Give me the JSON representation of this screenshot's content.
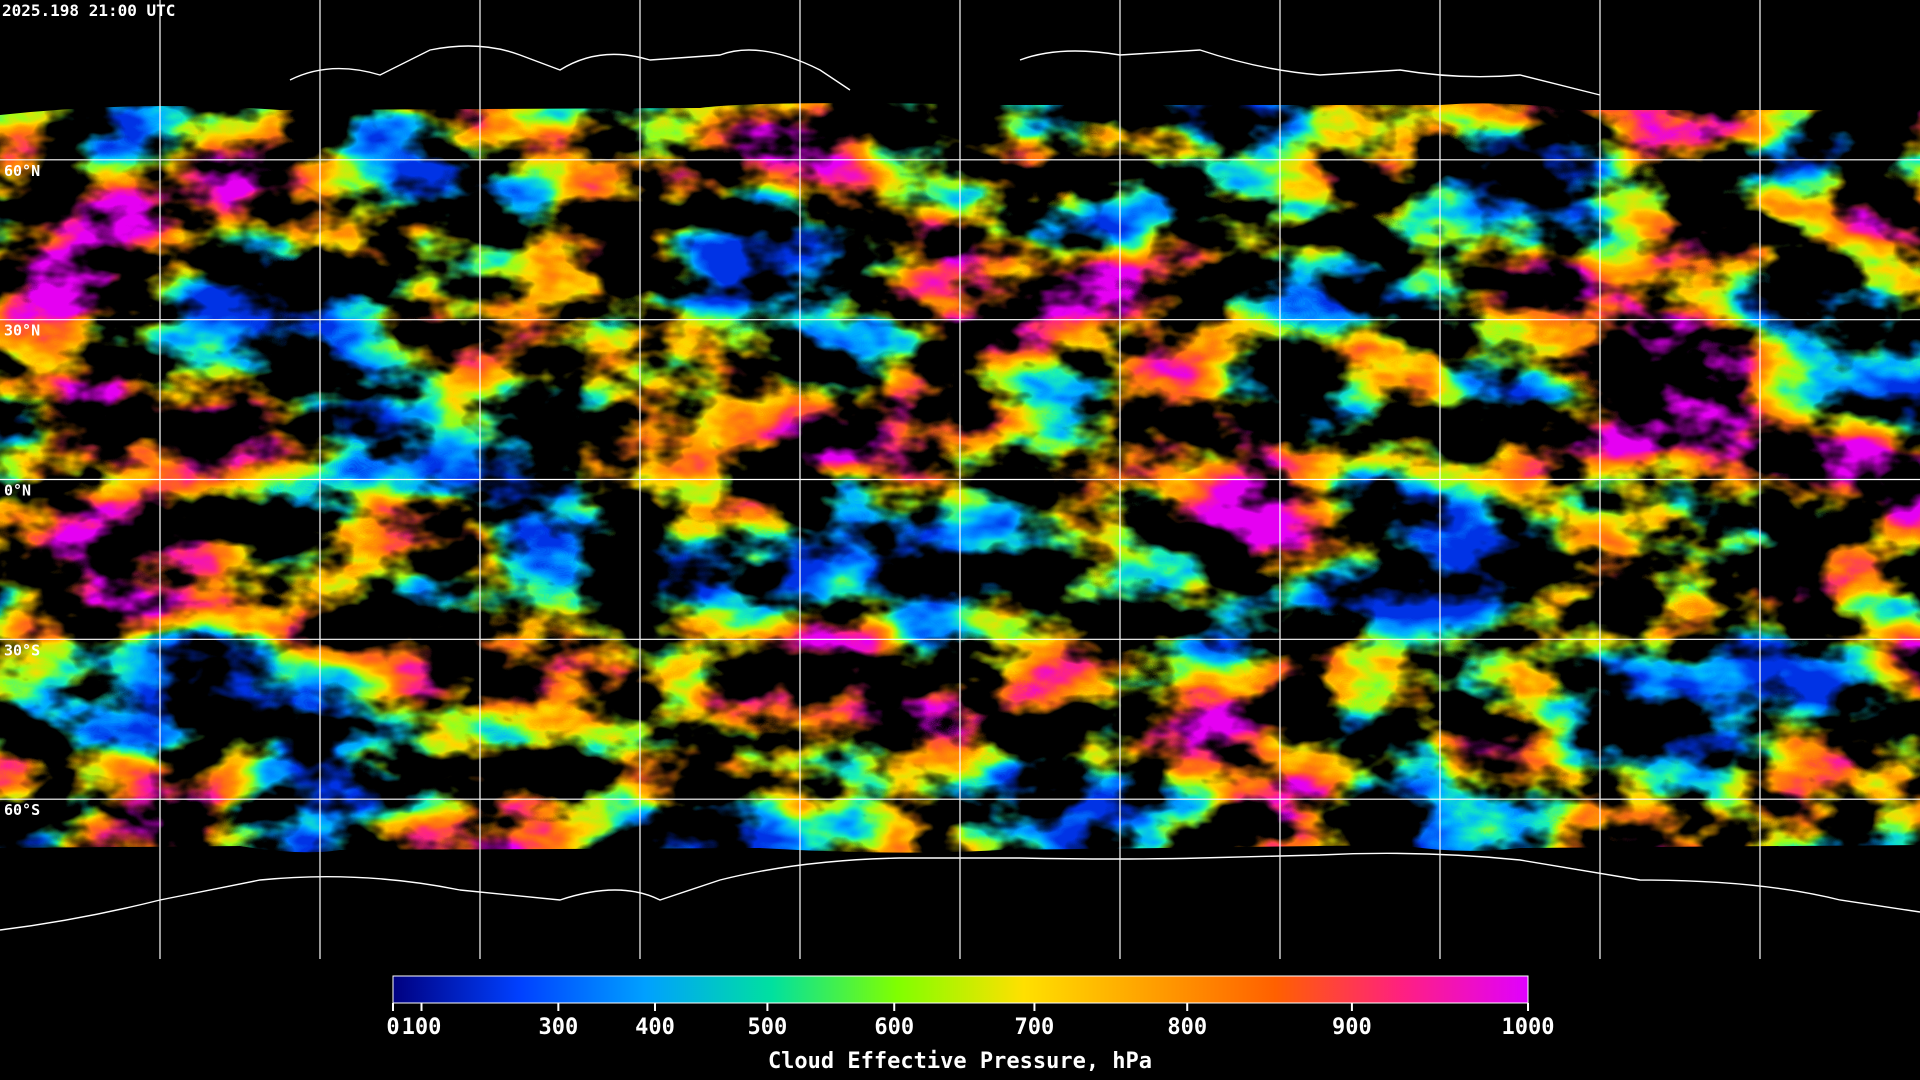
{
  "timestamp": "2025.198 21:00 UTC",
  "map": {
    "lat_labels": [
      "60°N",
      "30°N",
      "0°N",
      "30°S",
      "60°S"
    ]
  },
  "colorbar": {
    "label": "Cloud Effective Pressure, hPa",
    "range": [
      0,
      1000
    ],
    "ticks": [
      0,
      100,
      300,
      400,
      500,
      600,
      700,
      800,
      900,
      1000
    ],
    "colors": [
      "#000080",
      "#0040ff",
      "#00a0ff",
      "#00e0a0",
      "#80ff00",
      "#ffe000",
      "#ffa000",
      "#ff6000",
      "#ff2080",
      "#e000ff"
    ]
  }
}
